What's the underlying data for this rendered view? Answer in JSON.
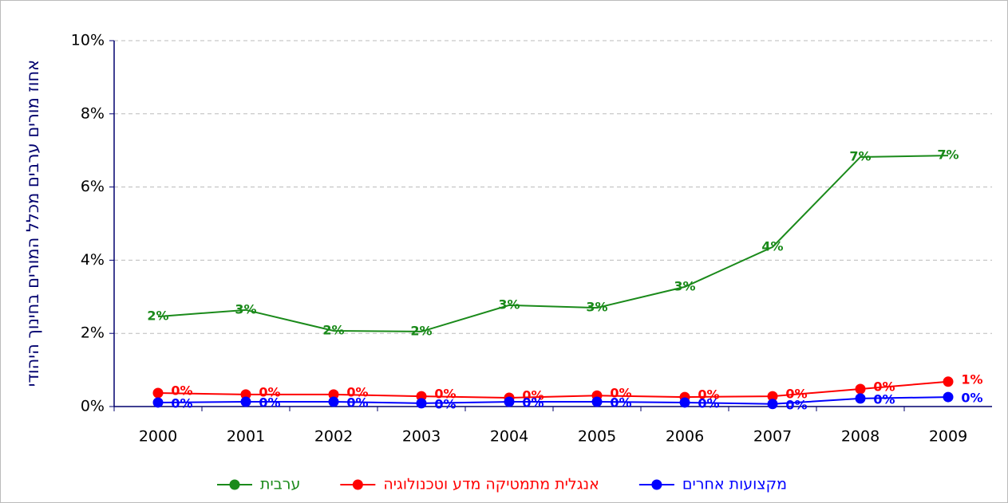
{
  "chart_data": {
    "type": "line",
    "y_label": "אחוז מורים ערבים מכלל המורים בחינוך היהודי",
    "categories": [
      "2000",
      "2001",
      "2002",
      "2003",
      "2004",
      "2005",
      "2006",
      "2007",
      "2008",
      "2009"
    ],
    "series": [
      {
        "name": "ערבית",
        "color": "#1a8a1a",
        "values": [
          2.46,
          2.64,
          2.07,
          2.05,
          2.77,
          2.7,
          3.27,
          4.36,
          6.82,
          6.86
        ],
        "value_labels": [
          "2%",
          "3%",
          "2%",
          "2%",
          "3%",
          "3%",
          "3%",
          "4%",
          "7%",
          "7%"
        ]
      },
      {
        "name": "אנגלית מתמטיקה מדע וטכנולוגיה",
        "color": "#ff0000",
        "values": [
          0.37,
          0.33,
          0.33,
          0.28,
          0.24,
          0.3,
          0.26,
          0.28,
          0.48,
          0.68
        ],
        "value_labels": [
          "0%",
          "0%",
          "0%",
          "0%",
          "0%",
          "0%",
          "0%",
          "0%",
          "0%",
          "1%"
        ]
      },
      {
        "name": "מקצועות אחרים",
        "color": "#0000ff",
        "values": [
          0.11,
          0.13,
          0.13,
          0.09,
          0.13,
          0.13,
          0.11,
          0.07,
          0.22,
          0.26
        ],
        "value_labels": [
          "0%",
          "0%",
          "0%",
          "0%",
          "0%",
          "0%",
          "0%",
          "0%",
          "0%",
          "0%"
        ]
      }
    ],
    "ylim": [
      0,
      10
    ],
    "yticks": [
      {
        "value": 0,
        "label": "0%"
      },
      {
        "value": 2,
        "label": "2%"
      },
      {
        "value": 4,
        "label": "4%"
      },
      {
        "value": 6,
        "label": "6%"
      },
      {
        "value": 8,
        "label": "8%"
      },
      {
        "value": 10,
        "label": "10%"
      }
    ],
    "grid": true,
    "legend": "bottom"
  }
}
